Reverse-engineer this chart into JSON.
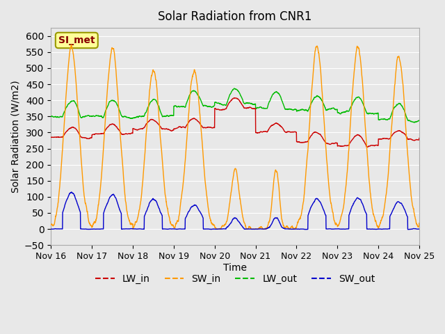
{
  "title": "Solar Radiation from CNR1",
  "xlabel": "Time",
  "ylabel": "Solar Radiation (W/m2)",
  "ylim": [
    -50,
    625
  ],
  "background_color": "#e8e8e8",
  "plot_bg_color": "#e8e8e8",
  "grid_color": "#ffffff",
  "annotation_text": "SI_met",
  "annotation_box_color": "#ffff99",
  "annotation_border_color": "#999900",
  "line_colors": {
    "LW_in": "#cc0000",
    "SW_in": "#ff9900",
    "LW_out": "#00bb00",
    "SW_out": "#0000cc"
  },
  "n_points": 2160,
  "x_start": 0,
  "x_end": 9,
  "xtick_positions": [
    0,
    1,
    2,
    3,
    4,
    5,
    6,
    7,
    8,
    9
  ],
  "xtick_labels": [
    "Nov 16",
    "Nov 17",
    "Nov 18",
    "Nov 19",
    "Nov 20",
    "Nov 21",
    "Nov 22",
    "Nov 23",
    "Nov 24",
    "Nov 25"
  ]
}
